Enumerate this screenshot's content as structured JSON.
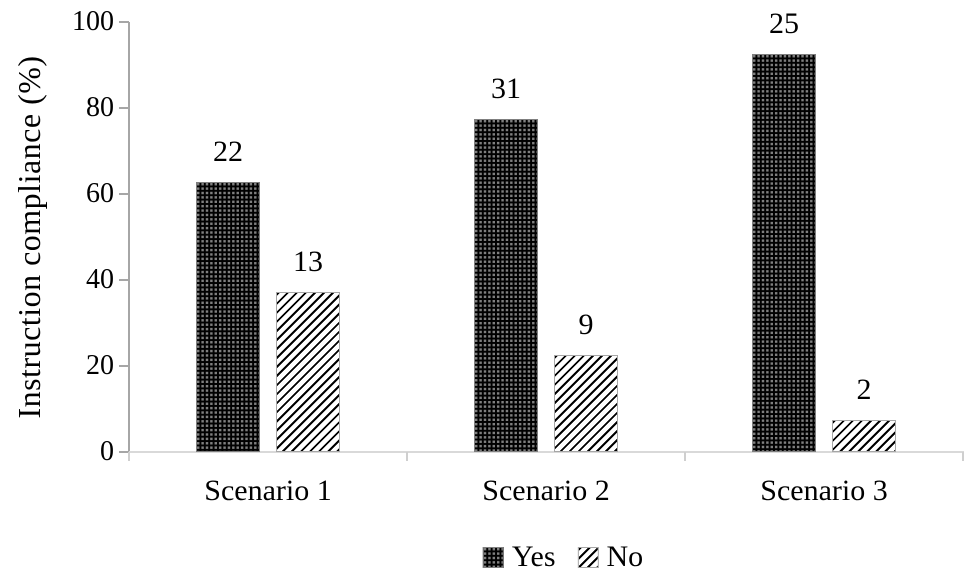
{
  "chart_data": {
    "type": "bar",
    "title": "",
    "categories": [
      "Scenario 1",
      "Scenario 2",
      "Scenario 3"
    ],
    "series": [
      {
        "name": "Yes",
        "values_pct": [
          62.9,
          77.5,
          92.6
        ],
        "data_labels": [
          22,
          31,
          25
        ],
        "pattern": "dots",
        "fill_description": "black with gray dotted grid pattern"
      },
      {
        "name": "No",
        "values_pct": [
          37.1,
          22.5,
          7.4
        ],
        "data_labels": [
          13,
          9,
          2
        ],
        "pattern": "hatch",
        "fill_description": "white with black diagonal hatch"
      }
    ],
    "xlabel": "",
    "ylabel": "Instruction compliance (%)",
    "ylim": [
      0,
      100
    ],
    "y_ticks": [
      100,
      80,
      60,
      40,
      20,
      0
    ],
    "grid": false,
    "legend_position": "bottom-center"
  },
  "colors": {
    "background": "#ffffff",
    "text": "#000000",
    "y_axis": "#a6a6a6",
    "x_axis": "#d9d9d9",
    "bar_dark": "#000000",
    "bar_dot_gray": "#7f7f7f",
    "hatch_black": "#000000",
    "hatch_white": "#ffffff"
  }
}
